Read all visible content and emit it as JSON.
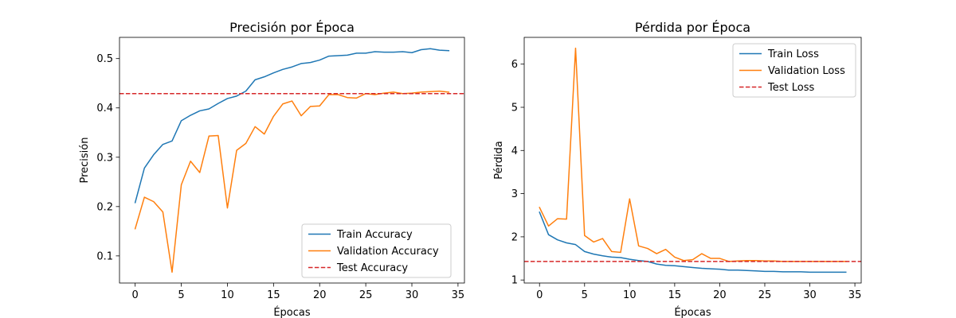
{
  "chart_data": [
    {
      "type": "line",
      "title": "Precisión por Época",
      "xlabel": "Épocas",
      "ylabel": "Precisión",
      "xlim": [
        -1.7,
        35.7
      ],
      "ylim": [
        0.045,
        0.543
      ],
      "xticks": [
        0,
        5,
        10,
        15,
        20,
        25,
        30,
        35
      ],
      "yticks": [
        0.1,
        0.2,
        0.3,
        0.4,
        0.5
      ],
      "grid": false,
      "legend_position": "lower-right",
      "x": [
        0,
        1,
        2,
        3,
        4,
        5,
        6,
        7,
        8,
        9,
        10,
        11,
        12,
        13,
        14,
        15,
        16,
        17,
        18,
        19,
        20,
        21,
        22,
        23,
        24,
        25,
        26,
        27,
        28,
        29,
        30,
        31,
        32,
        33,
        34
      ],
      "series": [
        {
          "name": "Train Accuracy",
          "color": "#1f77b4",
          "style": "solid",
          "values": [
            0.208,
            0.278,
            0.305,
            0.326,
            0.333,
            0.374,
            0.385,
            0.394,
            0.398,
            0.409,
            0.419,
            0.424,
            0.434,
            0.457,
            0.463,
            0.471,
            0.478,
            0.483,
            0.49,
            0.492,
            0.497,
            0.505,
            0.506,
            0.507,
            0.511,
            0.511,
            0.514,
            0.513,
            0.513,
            0.514,
            0.512,
            0.518,
            0.52,
            0.517,
            0.516
          ]
        },
        {
          "name": "Validation Accuracy",
          "color": "#ff7f0e",
          "style": "solid",
          "values": [
            0.155,
            0.219,
            0.21,
            0.189,
            0.067,
            0.244,
            0.292,
            0.269,
            0.343,
            0.344,
            0.197,
            0.314,
            0.328,
            0.362,
            0.347,
            0.383,
            0.408,
            0.414,
            0.384,
            0.403,
            0.404,
            0.427,
            0.427,
            0.421,
            0.42,
            0.429,
            0.427,
            0.43,
            0.432,
            0.429,
            0.43,
            0.432,
            0.433,
            0.434,
            0.432
          ]
        },
        {
          "name": "Test Accuracy",
          "color": "#d62728",
          "style": "dashed",
          "hline": 0.429
        }
      ]
    },
    {
      "type": "line",
      "title": "Pérdida por Época",
      "xlabel": "Épocas",
      "ylabel": "Pérdida",
      "xlim": [
        -1.7,
        35.7
      ],
      "ylim": [
        0.93,
        6.62
      ],
      "xticks": [
        0,
        5,
        10,
        15,
        20,
        25,
        30,
        35
      ],
      "yticks": [
        1,
        2,
        3,
        4,
        5,
        6
      ],
      "grid": false,
      "legend_position": "upper-right",
      "x": [
        0,
        1,
        2,
        3,
        4,
        5,
        6,
        7,
        8,
        9,
        10,
        11,
        12,
        13,
        14,
        15,
        16,
        17,
        18,
        19,
        20,
        21,
        22,
        23,
        24,
        25,
        26,
        27,
        28,
        29,
        30,
        31,
        32,
        33,
        34
      ],
      "series": [
        {
          "name": "Train Loss",
          "color": "#1f77b4",
          "style": "solid",
          "values": [
            2.57,
            2.05,
            1.93,
            1.86,
            1.82,
            1.66,
            1.6,
            1.56,
            1.53,
            1.52,
            1.48,
            1.45,
            1.43,
            1.37,
            1.34,
            1.33,
            1.31,
            1.29,
            1.27,
            1.26,
            1.25,
            1.23,
            1.23,
            1.22,
            1.21,
            1.2,
            1.2,
            1.19,
            1.19,
            1.19,
            1.18,
            1.18,
            1.18,
            1.18,
            1.18
          ]
        },
        {
          "name": "Validation Loss",
          "color": "#ff7f0e",
          "style": "solid",
          "values": [
            2.68,
            2.25,
            2.42,
            2.41,
            6.37,
            2.03,
            1.88,
            1.96,
            1.66,
            1.64,
            2.88,
            1.79,
            1.73,
            1.61,
            1.71,
            1.53,
            1.45,
            1.47,
            1.61,
            1.5,
            1.5,
            1.43,
            1.44,
            1.45,
            1.45,
            1.44,
            1.44,
            1.43,
            1.43,
            1.43,
            1.43,
            1.43,
            1.43,
            1.43,
            1.43
          ]
        },
        {
          "name": "Test Loss",
          "color": "#d62728",
          "style": "dashed",
          "hline": 1.43
        }
      ]
    }
  ]
}
